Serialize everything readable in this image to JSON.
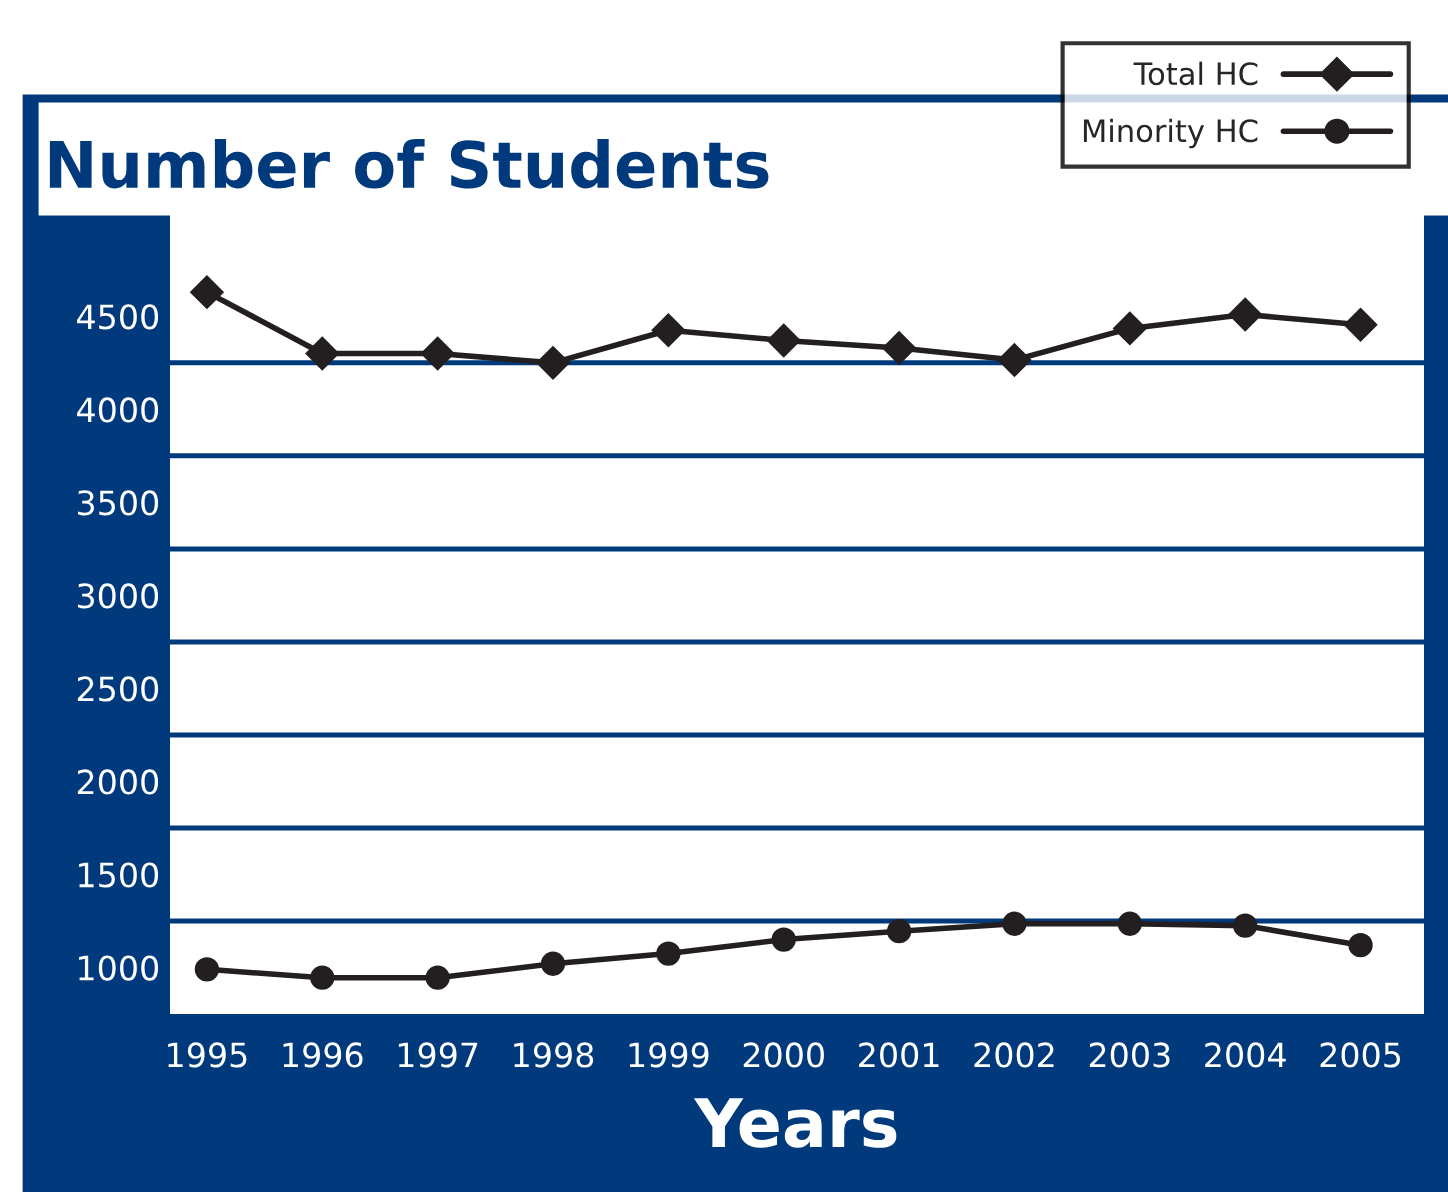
{
  "chart_data": {
    "type": "line",
    "title": "Number of Students",
    "xlabel": "Years",
    "categories": [
      "1995",
      "1996",
      "1997",
      "1998",
      "1999",
      "2000",
      "2001",
      "2002",
      "2003",
      "2004",
      "2005"
    ],
    "series": [
      {
        "name": "Total HC",
        "color": "#231f20",
        "marker": "diamond",
        "values": [
          4630,
          4300,
          4300,
          4250,
          4425,
          4370,
          4330,
          4265,
          4435,
          4510,
          4455
        ]
      },
      {
        "name": "Minority HC",
        "color": "#231f20",
        "marker": "circle",
        "values": [
          990,
          945,
          945,
          1020,
          1075,
          1150,
          1195,
          1235,
          1235,
          1225,
          1120
        ]
      }
    ],
    "ylim": [
      750,
      5050
    ],
    "yticks": [
      1000,
      1500,
      2000,
      2500,
      3000,
      3500,
      4000,
      4500
    ],
    "ref_lines": [
      {
        "axis": "y",
        "value": 1250,
        "color": "#003a7d"
      },
      {
        "axis": "y",
        "value": 1750,
        "color": "#003a7d"
      },
      {
        "axis": "y",
        "value": 2250,
        "color": "#003a7d"
      },
      {
        "axis": "y",
        "value": 2750,
        "color": "#003a7d"
      },
      {
        "axis": "y",
        "value": 3250,
        "color": "#003a7d"
      },
      {
        "axis": "y",
        "value": 3750,
        "color": "#003a7d"
      },
      {
        "axis": "y",
        "value": 4250,
        "color": "#003a7d"
      }
    ],
    "grid": false,
    "legend": "top right",
    "line_style": "solid"
  }
}
